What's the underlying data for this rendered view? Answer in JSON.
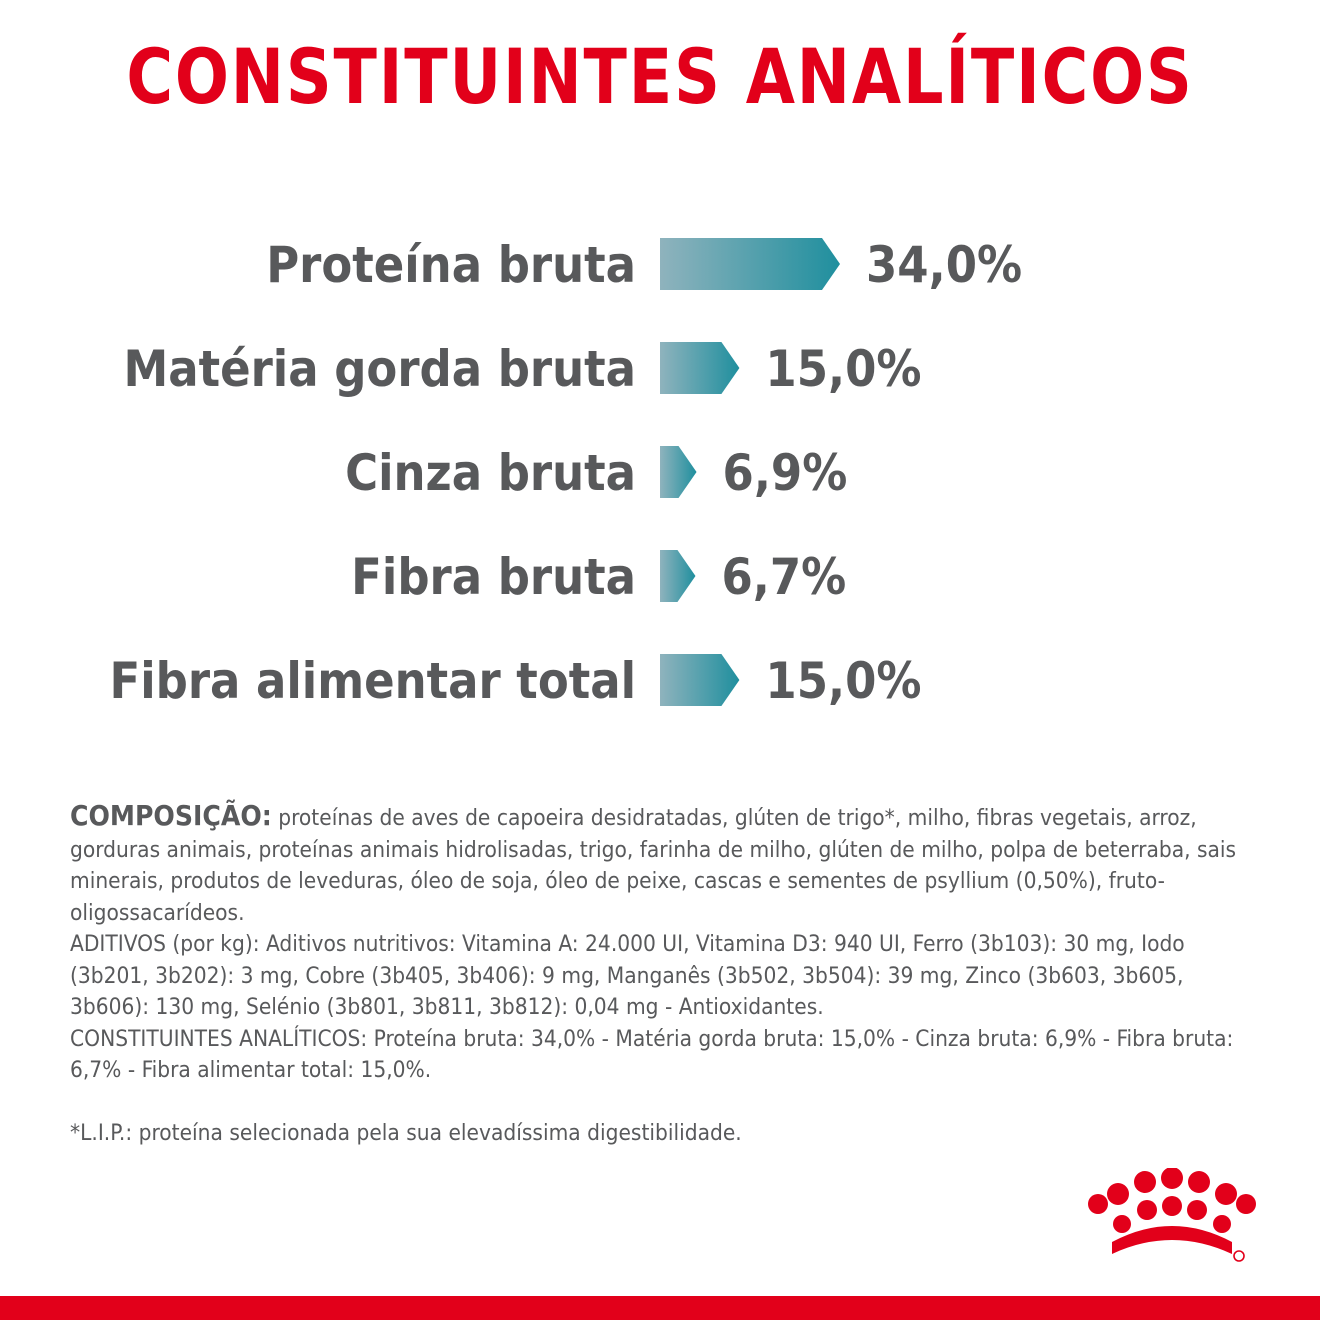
{
  "title": "CONSTITUINTES ANALÍTICOS",
  "chart_data": {
    "type": "bar",
    "orientation": "horizontal",
    "categories": [
      "Proteína bruta",
      "Matéria gorda bruta",
      "Cinza bruta",
      "Fibra bruta",
      "Fibra alimentar total"
    ],
    "values": [
      34.0,
      15.0,
      6.9,
      6.7,
      15.0
    ],
    "value_labels": [
      "34,0%",
      "15,0%",
      "6,9%",
      "6,7%",
      "15,0%"
    ],
    "unit": "%",
    "grid": false,
    "legend": "none",
    "bar_gradient": [
      "#8fb3bd",
      "#1f8f9e"
    ]
  },
  "composition": {
    "heading": "COMPOSIÇÃO:",
    "ingredients": " proteínas de aves de capoeira desidratadas, glúten de trigo*, milho, fibras vegetais, arroz, gorduras animais, proteínas animais hidrolisadas, trigo, farinha de milho, glúten de milho, polpa de beterraba, sais minerais, produtos de leveduras, óleo de soja, óleo de peixe, cascas e sementes de psyllium (0,50%), fruto-oligossacarídeos.",
    "additives": "ADITIVOS (por kg): Aditivos nutritivos: Vitamina A: 24.000 UI, Vitamina D3: 940 UI, Ferro (3b103): 30 mg, Iodo (3b201, 3b202): 3 mg, Cobre (3b405, 3b406): 9 mg, Manganês (3b502, 3b504): 39 mg, Zinco (3b603, 3b605, 3b606): 130 mg, Selénio (3b801, 3b811, 3b812): 0,04 mg - Antioxidantes.",
    "analytical": "CONSTITUINTES ANALÍTICOS: Proteína bruta: 34,0% - Matéria gorda bruta: 15,0% - Cinza bruta: 6,9% - Fibra bruta: 6,7% - Fibra alimentar total: 15,0%.",
    "footnote": "*L.I.P.: proteína selecionada pela sua elevadíssima digestibilidade."
  },
  "brand": {
    "logo_icon": "crown-icon",
    "accent": "#e2001a",
    "text_color": "#58595b"
  }
}
